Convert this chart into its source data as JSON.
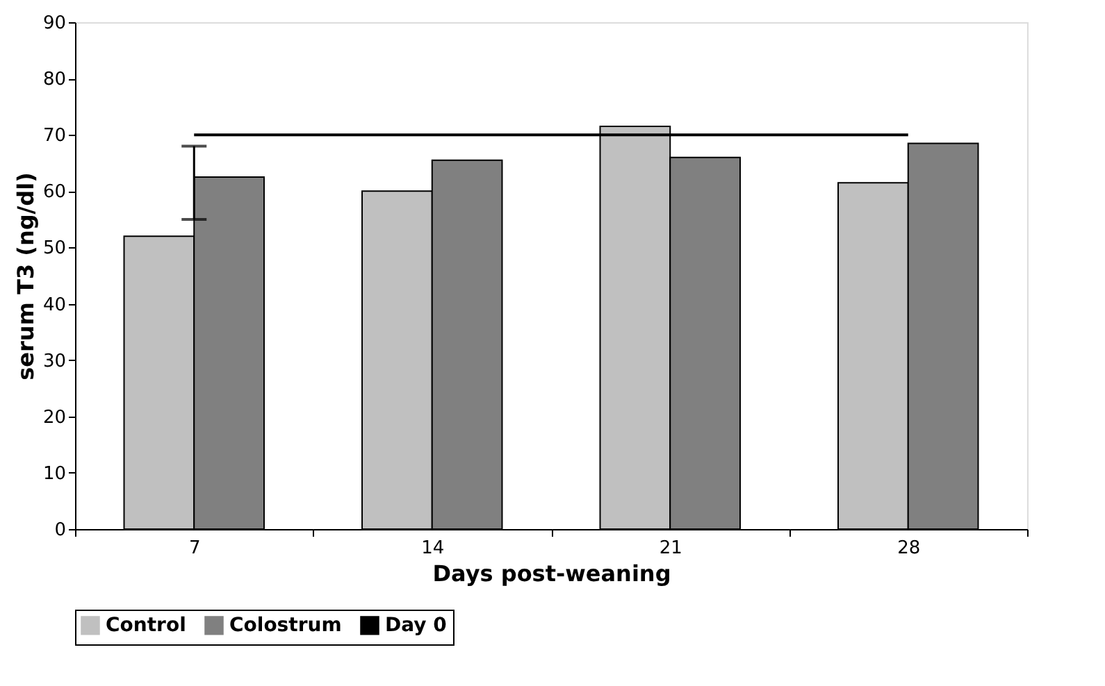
{
  "chart_data": {
    "type": "bar",
    "xlabel": "Days post-weaning",
    "ylabel": "serum T3 (ng/dl)",
    "categories": [
      "7",
      "14",
      "21",
      "28"
    ],
    "series": [
      {
        "name": "Control",
        "color": "#c0c0c0",
        "values": [
          52,
          60,
          71.5,
          61.5
        ]
      },
      {
        "name": "Colostrum",
        "color": "#808080",
        "values": [
          62.5,
          65.5,
          66,
          68.5
        ]
      },
      {
        "name": "Day 0",
        "type": "line",
        "color": "#000000",
        "values": [
          70,
          70,
          70,
          70
        ],
        "errors": [
          [
            55,
            68
          ],
          null,
          null,
          null
        ]
      }
    ],
    "ylim": [
      0,
      90
    ],
    "yticks": [
      0,
      10,
      20,
      30,
      40,
      50,
      60,
      70,
      80,
      90
    ],
    "grid": false,
    "legend": "bottom",
    "marker": "none",
    "line_style": "solid"
  }
}
